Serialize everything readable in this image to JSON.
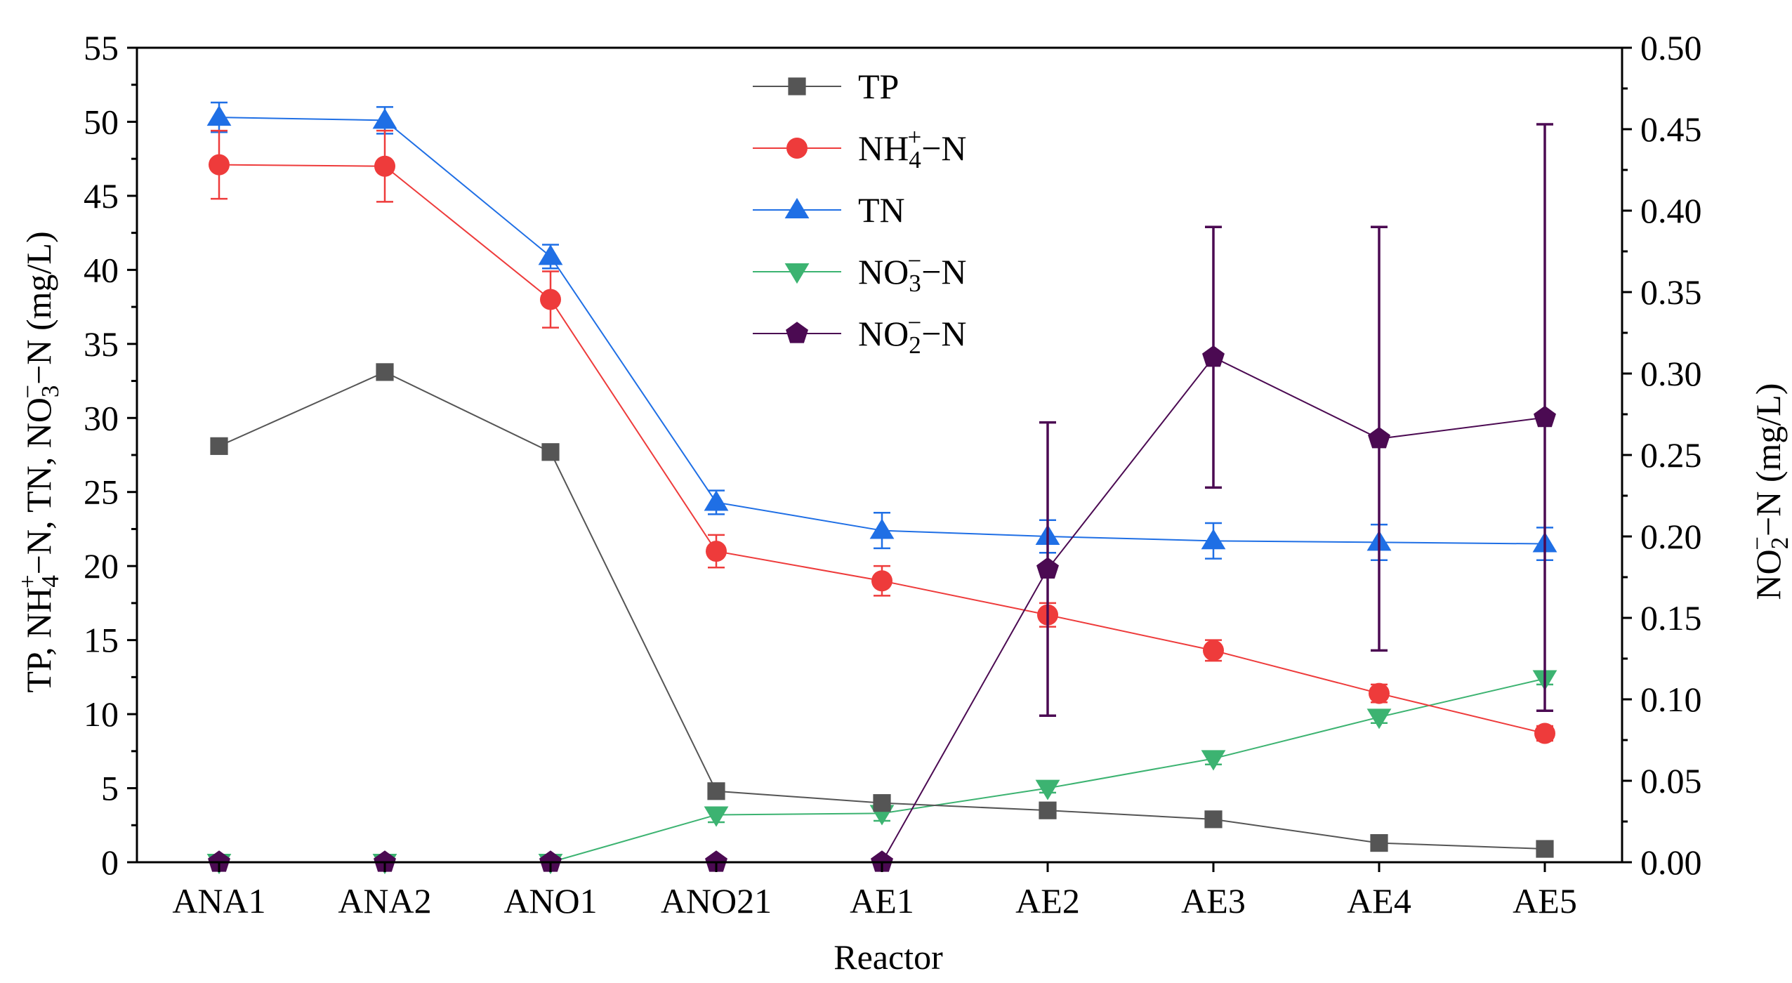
{
  "chart_data": {
    "type": "line",
    "title": "",
    "xlabel": "Reactor",
    "ylabel_left": "TP,  NH4+−N,  TN,  NO3−−N (mg/L)",
    "ylabel_right": "NO2−−N (mg/L)",
    "categories": [
      "ANA1",
      "ANA2",
      "ANO1",
      "ANO21",
      "AE1",
      "AE2",
      "AE3",
      "AE4",
      "AE5"
    ],
    "ylim_left": [
      0,
      55
    ],
    "yticks_left": [
      0,
      5,
      10,
      15,
      20,
      25,
      30,
      35,
      40,
      45,
      50,
      55
    ],
    "ylim_right": [
      0,
      0.5
    ],
    "yticks_right": [
      "0.00",
      "0.05",
      "0.10",
      "0.15",
      "0.20",
      "0.25",
      "0.30",
      "0.35",
      "0.40",
      "0.45",
      "0.50"
    ],
    "grid": false,
    "legend_position": "top-center",
    "series": [
      {
        "name": "TP",
        "legend_main": "TP",
        "legend_sub": "",
        "legend_sup": "",
        "legend_rest": "",
        "axis": "left",
        "color": "#555555",
        "marker": "square",
        "values": [
          28.1,
          33.1,
          27.7,
          4.8,
          4.0,
          3.5,
          2.9,
          1.3,
          0.9
        ],
        "errors": [
          0.3,
          0.4,
          0.3,
          0.3,
          0.3,
          0.3,
          0.3,
          0.3,
          0.3
        ]
      },
      {
        "name": "NH4+−N",
        "legend_main": "NH",
        "legend_sub": "4",
        "legend_sup": "+",
        "legend_rest": "−N",
        "axis": "left",
        "color": "#ee3b3b",
        "marker": "circle",
        "values": [
          47.1,
          47.0,
          38.0,
          21.0,
          19.0,
          16.7,
          14.3,
          11.4,
          8.7
        ],
        "errors": [
          2.3,
          2.4,
          1.9,
          1.1,
          1.0,
          0.8,
          0.7,
          0.6,
          0.5
        ]
      },
      {
        "name": "TN",
        "legend_main": "TN",
        "legend_sub": "",
        "legend_sup": "",
        "legend_rest": "",
        "axis": "left",
        "color": "#1f6fe5",
        "marker": "triangle-up",
        "values": [
          50.3,
          50.1,
          40.9,
          24.3,
          22.4,
          22.0,
          21.7,
          21.6,
          21.5
        ],
        "errors": [
          1.0,
          0.9,
          0.8,
          0.8,
          1.2,
          1.1,
          1.2,
          1.2,
          1.1
        ]
      },
      {
        "name": "NO3−−N",
        "legend_main": "NO",
        "legend_sub": "3",
        "legend_sup": "−",
        "legend_rest": "−N",
        "axis": "left",
        "color": "#3cb371",
        "marker": "triangle-down",
        "values": [
          0.0,
          0.0,
          0.0,
          3.2,
          3.3,
          5.0,
          7.0,
          9.8,
          12.4
        ],
        "errors": [
          0,
          0,
          0,
          0.5,
          0.5,
          0.3,
          0.4,
          0.4,
          0.4
        ]
      },
      {
        "name": "NO2−−N",
        "legend_main": "NO",
        "legend_sub": "2",
        "legend_sup": "−",
        "legend_rest": "−N",
        "axis": "right",
        "color": "#4b0a52",
        "marker": "pentagon",
        "values": [
          0.0,
          0.0,
          0.0,
          0.0,
          0.0,
          0.18,
          0.31,
          0.26,
          0.273
        ],
        "errors_low": [
          0,
          0,
          0,
          0,
          0,
          0.09,
          0.08,
          0.13,
          0.18
        ],
        "errors_high": [
          0,
          0,
          0,
          0,
          0,
          0.09,
          0.08,
          0.13,
          0.18
        ]
      }
    ]
  }
}
